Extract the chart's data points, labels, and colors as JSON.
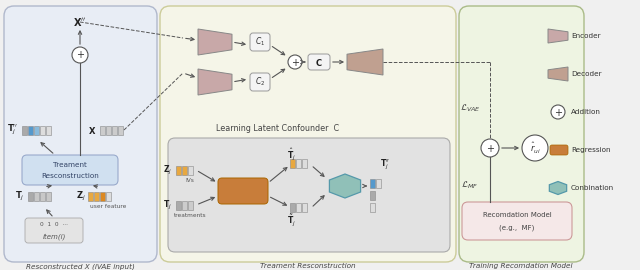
{
  "bg_color": "#f0f0f0",
  "panel1_color": "#e8edf5",
  "panel2_color": "#f5f5e8",
  "panel3_color": "#eef4e2",
  "subpanel_color": "#e2e2e2",
  "encoder_color": "#c8a8a8",
  "decoder_color": "#c0a090",
  "regression_color": "#c87d3a",
  "combination_color": "#90c0b8",
  "addition_color": "#ffffff",
  "recom_box_color": "#f5e8e8",
  "treat_box_color": "#d0e0f0",
  "panel1_label": "Resconstructed X (iVAE input)",
  "panel2_label": "Treament Resconstruction",
  "panel3_label": "Training Recomdation Model",
  "section_label": "Learning Latent Confounder  C"
}
